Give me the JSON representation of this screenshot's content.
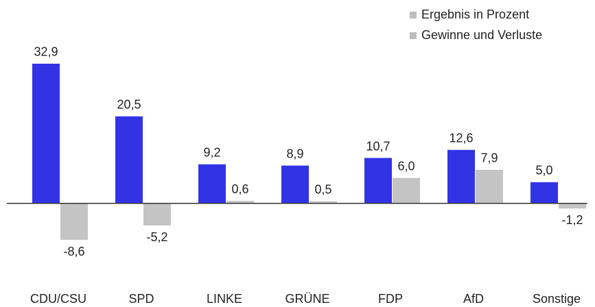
{
  "chart_data": {
    "type": "bar",
    "categories": [
      "CDU/CSU",
      "SPD",
      "LINKE",
      "GRÜNE",
      "FDP",
      "AfD",
      "Sonstige"
    ],
    "series": [
      {
        "name": "Ergebnis in Prozent",
        "color": "#3333e6",
        "values": [
          32.9,
          20.5,
          9.2,
          8.9,
          10.7,
          12.6,
          5.0
        ],
        "value_labels": [
          "32,9",
          "20,5",
          "9,2",
          "8,9",
          "10,7",
          "12,6",
          "5,0"
        ]
      },
      {
        "name": "Gewinne und Verluste",
        "color": "#c4c4c4",
        "values": [
          -8.6,
          -5.2,
          0.6,
          0.5,
          6.0,
          7.9,
          -1.2
        ],
        "value_labels": [
          "-8,6",
          "-5,2",
          "0,6",
          "0,5",
          "6,0",
          "7,9",
          "-1,2"
        ]
      }
    ],
    "legend_marker_color": "#bdbdbd",
    "legend": "upper right",
    "ylim": [
      -24.4,
      47.9
    ]
  }
}
